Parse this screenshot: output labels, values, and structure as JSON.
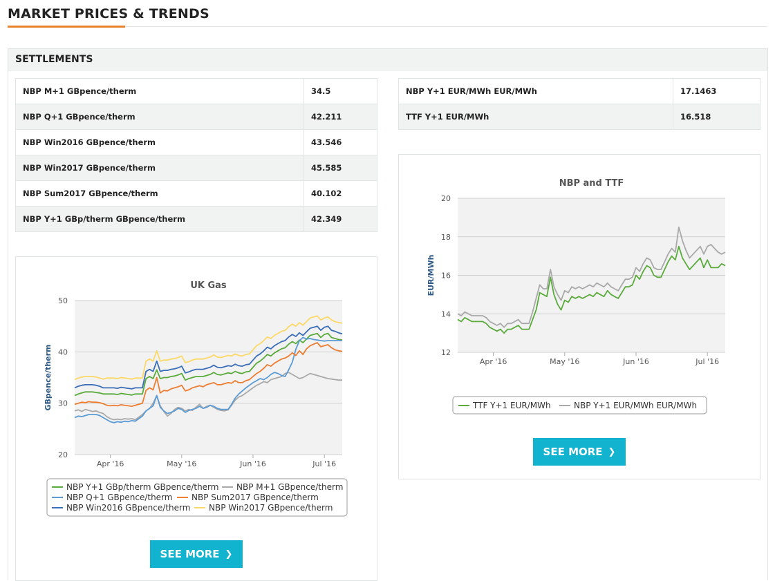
{
  "page": {
    "title": "MARKET PRICES & TRENDS"
  },
  "settlements": {
    "title": "SETTLEMENTS",
    "left_table": [
      {
        "label": "NBP M+1 GBpence/therm",
        "value": "34.5"
      },
      {
        "label": "NBP Q+1 GBpence/therm",
        "value": "42.211"
      },
      {
        "label": "NBP Win2016 GBpence/therm",
        "value": "43.546"
      },
      {
        "label": "NBP Win2017 GBpence/therm",
        "value": "45.585"
      },
      {
        "label": "NBP Sum2017 GBpence/therm",
        "value": "40.102"
      },
      {
        "label": "NBP Y+1 GBp/therm GBpence/therm",
        "value": "42.349"
      }
    ],
    "right_table": [
      {
        "label": "NBP Y+1 EUR/MWh EUR/MWh",
        "value": "17.1463"
      },
      {
        "label": "TTF Y+1 EUR/MWh",
        "value": "16.518"
      }
    ]
  },
  "buttons": {
    "see_more": "SEE MORE"
  },
  "icons": {
    "see_more": "chevron-right-icon"
  },
  "chart_data": [
    {
      "type": "line",
      "title": "UK Gas",
      "ylabel": "GBpence/therm",
      "ylim": [
        20,
        50
      ],
      "yticks": [
        20,
        30,
        40,
        50
      ],
      "x_tick_labels": [
        "Apr '16",
        "May '16",
        "Jun '16",
        "Jul '16"
      ],
      "x_tick_index": [
        10,
        30,
        50,
        70
      ],
      "grid": true,
      "legend_placement": "bottom",
      "series": [
        {
          "name": "NBP Y+1 GBp/therm GBpence/therm",
          "color": "#5aab3c",
          "values": [
            31.5,
            31.8,
            32.0,
            32.2,
            32.2,
            32.2,
            32.1,
            32.0,
            31.8,
            31.8,
            31.8,
            31.8,
            31.7,
            31.9,
            31.8,
            31.7,
            31.6,
            31.8,
            31.8,
            31.8,
            34.8,
            35.2,
            34.8,
            36.5,
            34.8,
            35.0,
            35.0,
            35.2,
            35.3,
            35.5,
            35.8,
            34.5,
            34.8,
            35.0,
            35.2,
            35.2,
            35.2,
            35.4,
            35.6,
            36.0,
            35.6,
            35.5,
            35.7,
            35.9,
            35.8,
            36.2,
            35.9,
            35.8,
            36.1,
            36.2,
            37.0,
            37.8,
            38.2,
            38.8,
            39.5,
            39.2,
            39.8,
            40.2,
            40.6,
            40.8,
            41.5,
            42.0,
            41.6,
            42.3,
            41.8,
            42.5,
            43.2,
            43.4,
            43.6,
            42.8,
            43.4,
            43.6,
            42.8,
            42.6,
            42.4,
            42.3
          ]
        },
        {
          "name": "NBP M+1 GBpence/therm",
          "color": "#a9a9a9",
          "values": [
            28.5,
            28.7,
            28.4,
            28.8,
            28.6,
            28.4,
            28.5,
            28.2,
            28.0,
            27.4,
            27.0,
            26.8,
            26.9,
            26.8,
            27.0,
            26.9,
            27.0,
            26.8,
            27.3,
            27.8,
            28.5,
            29.0,
            30.0,
            31.5,
            29.5,
            28.4,
            27.5,
            28.0,
            28.8,
            29.2,
            29.0,
            28.5,
            28.8,
            28.6,
            29.2,
            29.8,
            29.0,
            29.4,
            29.6,
            29.2,
            28.8,
            28.6,
            28.5,
            28.7,
            29.6,
            30.6,
            31.2,
            31.5,
            32.0,
            32.5,
            33.0,
            33.5,
            33.8,
            34.2,
            34.0,
            34.6,
            34.8,
            35.0,
            35.2,
            35.8,
            36.0,
            35.6,
            35.2,
            34.8,
            35.0,
            35.4,
            35.8,
            35.6,
            35.4,
            35.2,
            35.0,
            34.8,
            34.7,
            34.6,
            34.5,
            34.5
          ]
        },
        {
          "name": "NBP Q+1 GBpence/therm",
          "color": "#5b9bd5",
          "values": [
            27.2,
            27.5,
            27.4,
            27.6,
            27.8,
            27.8,
            27.8,
            27.6,
            27.2,
            26.8,
            26.4,
            26.2,
            26.4,
            26.3,
            26.5,
            26.4,
            26.6,
            26.5,
            27.0,
            27.5,
            28.5,
            29.0,
            29.5,
            31.5,
            29.2,
            28.5,
            28.0,
            28.2,
            28.5,
            29.0,
            28.8,
            28.2,
            28.6,
            28.8,
            29.0,
            29.4,
            29.0,
            29.2,
            29.6,
            29.4,
            29.0,
            28.8,
            28.8,
            28.8,
            29.8,
            31.0,
            31.8,
            32.4,
            33.0,
            33.5,
            34.0,
            34.4,
            34.8,
            34.6,
            35.0,
            35.6,
            36.0,
            35.8,
            35.4,
            35.2,
            36.5,
            38.0,
            40.5,
            42.2,
            42.8,
            42.5,
            42.6,
            42.4,
            42.3,
            42.2,
            42.1,
            42.2,
            42.2,
            42.2,
            42.2,
            42.2
          ]
        },
        {
          "name": "NBP Sum2017 GBpence/therm",
          "color": "#ed7d31",
          "values": [
            29.8,
            30.0,
            30.2,
            30.1,
            30.3,
            30.2,
            30.2,
            30.1,
            29.9,
            29.6,
            29.5,
            29.6,
            29.5,
            29.7,
            29.6,
            29.5,
            29.4,
            29.6,
            29.8,
            30.0,
            32.5,
            33.0,
            32.6,
            35.0,
            32.0,
            32.5,
            32.4,
            32.8,
            33.0,
            33.2,
            33.5,
            32.4,
            32.6,
            33.0,
            33.2,
            33.4,
            33.2,
            33.6,
            33.8,
            34.0,
            33.6,
            33.6,
            33.8,
            34.0,
            33.9,
            34.4,
            34.0,
            34.0,
            34.4,
            34.6,
            35.2,
            35.8,
            36.2,
            36.8,
            37.5,
            37.2,
            37.8,
            38.2,
            38.6,
            38.8,
            39.2,
            39.8,
            39.3,
            40.2,
            39.5,
            40.6,
            41.2,
            41.5,
            41.8,
            41.0,
            41.2,
            41.4,
            40.8,
            40.4,
            40.2,
            40.1
          ]
        },
        {
          "name": "NBP Win2016 GBpence/therm",
          "color": "#3a6db8",
          "values": [
            33.0,
            33.3,
            33.5,
            33.6,
            33.6,
            33.6,
            33.5,
            33.3,
            33.0,
            33.0,
            33.0,
            33.0,
            32.9,
            33.1,
            33.0,
            32.9,
            32.8,
            33.0,
            33.0,
            33.0,
            36.2,
            36.6,
            36.2,
            38.2,
            36.2,
            36.4,
            36.4,
            36.6,
            36.7,
            36.9,
            37.2,
            35.9,
            36.1,
            36.4,
            36.6,
            36.6,
            36.6,
            36.8,
            37.0,
            37.4,
            37.0,
            36.9,
            37.1,
            37.3,
            37.2,
            37.6,
            37.3,
            37.2,
            37.5,
            37.6,
            38.4,
            39.2,
            39.6,
            40.2,
            40.9,
            40.6,
            41.2,
            41.6,
            42.0,
            42.2,
            42.9,
            43.4,
            43.0,
            43.7,
            43.2,
            43.9,
            44.6,
            44.8,
            45.0,
            44.2,
            44.8,
            45.0,
            44.2,
            44.0,
            43.7,
            43.5
          ]
        },
        {
          "name": "NBP Win2017 GBpence/therm",
          "color": "#fcd966",
          "values": [
            34.6,
            34.9,
            35.1,
            35.2,
            35.2,
            35.2,
            35.1,
            34.9,
            34.7,
            34.9,
            34.9,
            34.9,
            34.8,
            35.0,
            34.9,
            34.8,
            34.7,
            34.9,
            34.9,
            34.9,
            38.2,
            38.6,
            38.2,
            40.2,
            38.2,
            38.4,
            38.4,
            38.6,
            38.7,
            38.9,
            39.2,
            37.9,
            38.1,
            38.4,
            38.6,
            38.6,
            38.6,
            38.8,
            39.0,
            39.4,
            39.0,
            38.9,
            39.1,
            39.3,
            39.2,
            39.6,
            39.3,
            39.2,
            39.5,
            39.6,
            40.4,
            41.2,
            41.6,
            42.2,
            42.9,
            42.6,
            43.2,
            43.6,
            44.0,
            44.2,
            44.9,
            45.4,
            45.0,
            45.7,
            45.2,
            45.9,
            46.6,
            46.8,
            47.0,
            46.2,
            46.6,
            46.8,
            46.2,
            45.9,
            45.7,
            45.6
          ]
        }
      ]
    },
    {
      "type": "line",
      "title": "NBP and TTF",
      "ylabel": "EUR/MWh",
      "ylim": [
        12,
        20
      ],
      "yticks": [
        12,
        14,
        16,
        18,
        20
      ],
      "x_tick_labels": [
        "Apr '16",
        "May '16",
        "Jun '16",
        "Jul '16"
      ],
      "x_tick_index": [
        10,
        30,
        50,
        70
      ],
      "grid": true,
      "legend_placement": "bottom",
      "series": [
        {
          "name": "TTF Y+1 EUR/MWh",
          "color": "#5aab3c",
          "values": [
            13.7,
            13.6,
            13.8,
            13.7,
            13.6,
            13.6,
            13.6,
            13.6,
            13.5,
            13.3,
            13.2,
            13.1,
            13.2,
            13.0,
            13.2,
            13.2,
            13.3,
            13.4,
            13.2,
            13.2,
            13.2,
            13.7,
            14.2,
            15.1,
            15.0,
            14.9,
            15.9,
            15.0,
            14.5,
            14.2,
            14.7,
            14.6,
            14.9,
            14.8,
            14.9,
            14.8,
            14.9,
            15.0,
            14.9,
            15.1,
            15.0,
            14.9,
            15.2,
            15.0,
            14.9,
            14.8,
            15.1,
            15.4,
            15.4,
            15.5,
            16.0,
            15.8,
            16.2,
            16.5,
            16.4,
            16.0,
            15.9,
            15.9,
            16.3,
            16.7,
            17.0,
            16.8,
            17.5,
            16.9,
            16.6,
            16.3,
            16.5,
            16.7,
            16.9,
            16.4,
            16.8,
            16.4,
            16.4,
            16.4,
            16.6,
            16.5
          ]
        },
        {
          "name": "NBP Y+1 EUR/MWh EUR/MWh",
          "color": "#a9a9a9",
          "values": [
            14.0,
            13.9,
            14.1,
            14.0,
            13.9,
            13.9,
            13.9,
            13.9,
            13.8,
            13.6,
            13.5,
            13.4,
            13.5,
            13.3,
            13.5,
            13.5,
            13.6,
            13.7,
            13.5,
            13.5,
            13.5,
            14.1,
            14.8,
            15.5,
            15.3,
            15.3,
            16.3,
            15.4,
            15.0,
            14.7,
            15.2,
            15.1,
            15.4,
            15.3,
            15.4,
            15.3,
            15.4,
            15.5,
            15.4,
            15.6,
            15.5,
            15.4,
            15.6,
            15.4,
            15.3,
            15.2,
            15.5,
            15.8,
            15.8,
            15.9,
            16.4,
            16.2,
            16.6,
            16.9,
            16.8,
            16.4,
            16.3,
            16.3,
            16.7,
            17.1,
            17.4,
            17.2,
            18.5,
            17.8,
            17.3,
            16.9,
            17.1,
            17.3,
            17.5,
            17.1,
            17.5,
            17.6,
            17.4,
            17.2,
            17.1,
            17.2
          ]
        }
      ]
    }
  ]
}
